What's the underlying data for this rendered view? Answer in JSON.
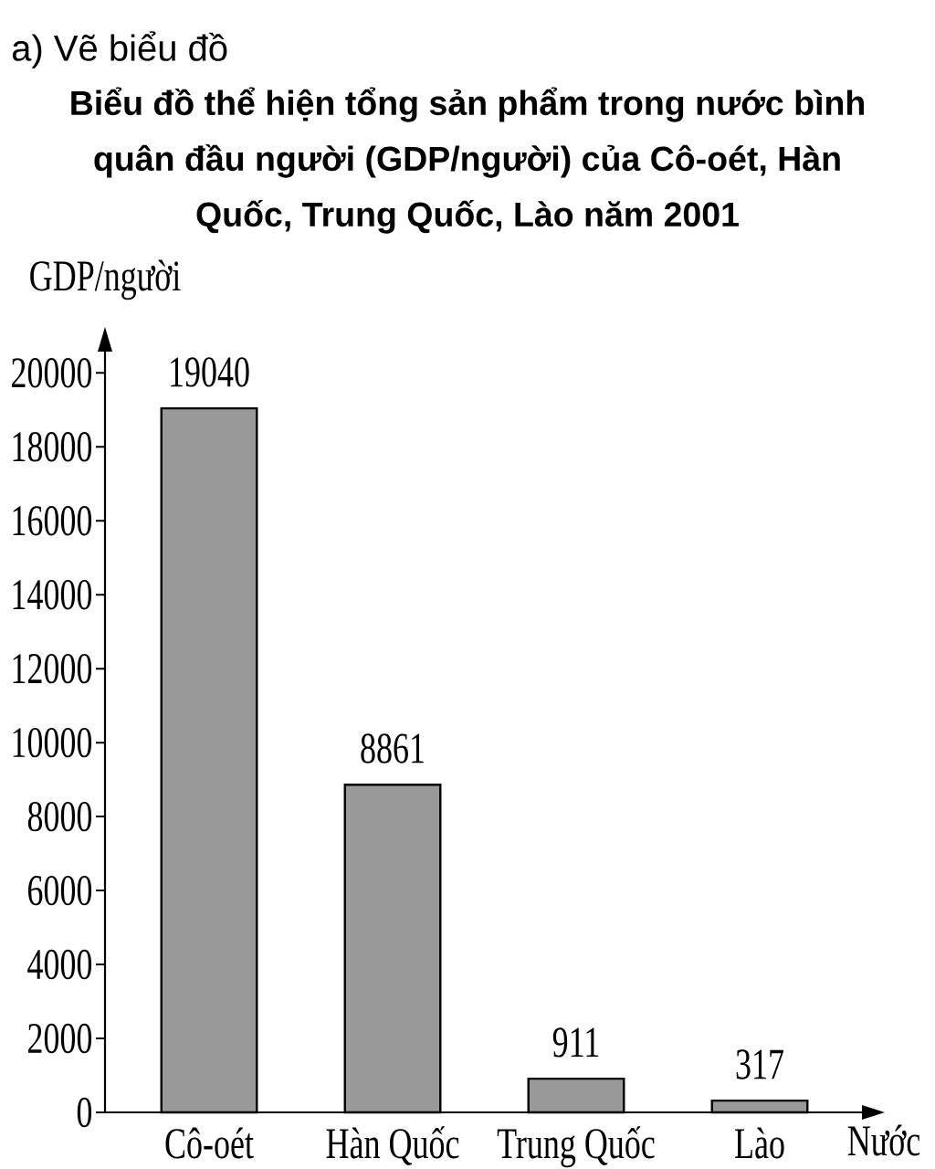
{
  "chart_data": {
    "type": "bar",
    "title": "Biểu đồ thể hiện tổng sản phẩm trong nước bình quân đầu người (GDP/người) của Cô-oét, Hàn Quốc, Trung Quốc, Lào năm 2001",
    "annotations": [
      "a) Vẽ biểu đồ"
    ],
    "xlabel": "Nước",
    "ylabel": "GDP/người",
    "categories": [
      "Cô-oét",
      "Hàn Quốc",
      "Trung Quốc",
      "Lào"
    ],
    "values": [
      19040,
      8861,
      911,
      317
    ],
    "color": "#999999",
    "ylim": [
      0,
      20600
    ],
    "yticks": [
      0,
      2000,
      4000,
      6000,
      8000,
      10000,
      12000,
      14000,
      16000,
      18000,
      20000
    ],
    "data_labels": true
  }
}
